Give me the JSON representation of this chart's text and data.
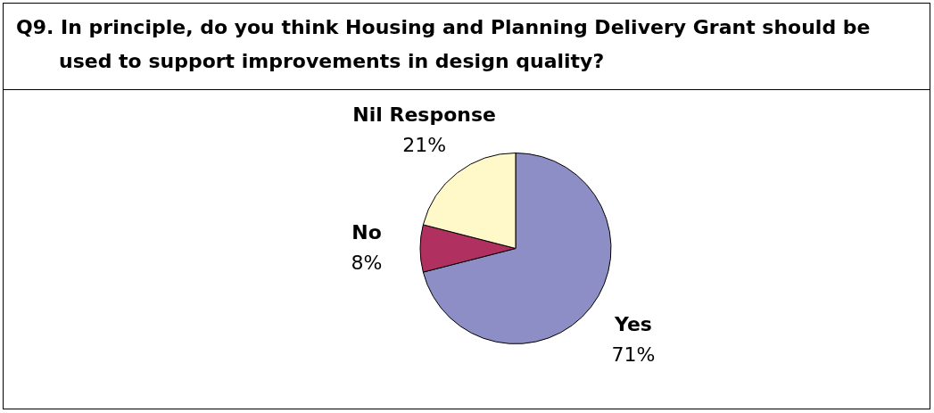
{
  "chart_data": {
    "type": "pie",
    "title": "Q9. In principle, do you think Housing and Planning Delivery Grant should be used to support improvements in design quality?",
    "categories": [
      "Yes",
      "No",
      "Nil Response"
    ],
    "values": [
      71,
      8,
      21
    ],
    "value_labels": [
      "71%",
      "8%",
      "21%"
    ],
    "colors": [
      "#8e8ec6",
      "#b03060",
      "#fff8c8"
    ]
  }
}
